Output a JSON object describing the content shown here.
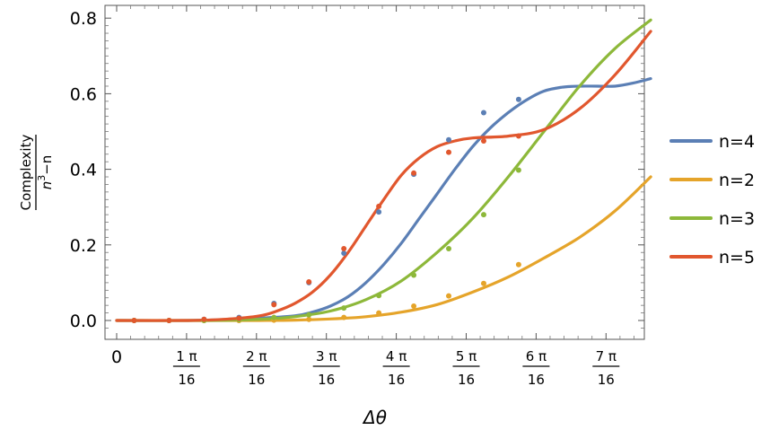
{
  "chart_data": {
    "type": "line",
    "xlabel": "Δθ",
    "ylabel_numerator": "Complexity",
    "ylabel_denominator_base": "n",
    "ylabel_denominator_exp": "3",
    "ylabel_denominator_tail": "−n",
    "xlim": [
      -0.03,
      0.468
    ],
    "ylim": [
      -0.03,
      0.82
    ],
    "x_zero_label": "0",
    "x_ticks": [
      {
        "value": 0.19635,
        "num": "1 π",
        "den": "16"
      },
      {
        "value": 0.3927,
        "num": "2 π",
        "den": "16"
      },
      {
        "value": 0.58905,
        "num": "3 π",
        "den": "16"
      },
      {
        "value": 0.7854,
        "num": "4 π",
        "den": "16"
      },
      {
        "value": 0.98175,
        "num": "5 π",
        "den": "16"
      },
      {
        "value": 1.1781,
        "num": "6 π",
        "den": "16"
      },
      {
        "value": 1.37445,
        "num": "7 π",
        "den": "16"
      }
    ],
    "y_ticks": [
      {
        "value": 0.0,
        "label": "0.0"
      },
      {
        "value": 0.2,
        "label": "0.2"
      },
      {
        "value": 0.4,
        "label": "0.4"
      },
      {
        "value": 0.6,
        "label": "0.6"
      },
      {
        "value": 0.8,
        "label": "0.8"
      }
    ],
    "legend_position": "right",
    "series": [
      {
        "name": "n=4",
        "color": "#5b7fb5",
        "points_x": [
          0.0982,
          0.2945,
          0.4909,
          0.6872,
          0.8836,
          1.0799,
          1.2763,
          1.4726,
          1.669,
          1.8653,
          2.0617,
          2.258
        ],
        "points_y": [
          0.0,
          0.0,
          0.003,
          0.008,
          0.045,
          0.1,
          0.178,
          0.287,
          0.387,
          0.478,
          0.55,
          0.585
        ],
        "curve_x": [
          0.0,
          0.4,
          0.6,
          0.8,
          1.0,
          1.1,
          1.2,
          1.3,
          1.4,
          1.5,
          1.6,
          1.7,
          1.8,
          1.9,
          2.0,
          2.1,
          2.2,
          2.3,
          2.4,
          2.5,
          2.6,
          2.7,
          2.8,
          2.9,
          3.0
        ],
        "curve_y": [
          0.0,
          0.0,
          0.002,
          0.006,
          0.012,
          0.022,
          0.038,
          0.063,
          0.1,
          0.148,
          0.205,
          0.27,
          0.335,
          0.4,
          0.46,
          0.51,
          0.55,
          0.583,
          0.607,
          0.617,
          0.62,
          0.62,
          0.62,
          0.628,
          0.64
        ]
      },
      {
        "name": "n=2",
        "color": "#e5a42a",
        "points_x": [
          0.0982,
          0.2945,
          0.4909,
          0.6872,
          0.8836,
          1.0799,
          1.2763,
          1.4726,
          1.669,
          1.8653,
          2.0617,
          2.258
        ],
        "points_y": [
          0.0,
          0.0,
          0.0,
          0.0,
          0.001,
          0.003,
          0.008,
          0.02,
          0.038,
          0.065,
          0.098,
          0.148
        ],
        "curve_x": [
          0.0,
          0.5,
          0.8,
          1.0,
          1.2,
          1.4,
          1.6,
          1.8,
          2.0,
          2.2,
          2.4,
          2.6,
          2.8,
          3.0
        ],
        "curve_y": [
          0.0,
          0.0,
          0.0,
          0.001,
          0.004,
          0.01,
          0.022,
          0.042,
          0.075,
          0.115,
          0.165,
          0.22,
          0.29,
          0.38
        ]
      },
      {
        "name": "n=3",
        "color": "#8db83a",
        "points_x": [
          0.0982,
          0.2945,
          0.4909,
          0.6872,
          0.8836,
          1.0799,
          1.2763,
          1.4726,
          1.669,
          1.8653,
          2.0617,
          2.258
        ],
        "points_y": [
          0.0,
          0.0,
          0.0,
          0.002,
          0.008,
          0.015,
          0.033,
          0.066,
          0.12,
          0.19,
          0.28,
          0.398
        ],
        "curve_x": [
          0.0,
          0.5,
          0.8,
          1.0,
          1.2,
          1.4,
          1.6,
          1.8,
          2.0,
          2.2,
          2.4,
          2.6,
          2.8,
          3.0
        ],
        "curve_y": [
          0.0,
          0.0,
          0.003,
          0.01,
          0.025,
          0.055,
          0.105,
          0.18,
          0.27,
          0.38,
          0.5,
          0.62,
          0.72,
          0.795
        ]
      },
      {
        "name": "n=5",
        "color": "#e1572e",
        "points_x": [
          0.0982,
          0.2945,
          0.4909,
          0.6872,
          0.8836,
          1.0799,
          1.2763,
          1.4726,
          1.669,
          1.8653,
          2.0617,
          2.258
        ],
        "points_y": [
          0.0,
          0.0,
          0.003,
          0.006,
          0.042,
          0.102,
          0.19,
          0.302,
          0.39,
          0.445,
          0.475,
          0.488
        ],
        "curve_x": [
          0.0,
          0.4,
          0.6,
          0.8,
          0.9,
          1.0,
          1.1,
          1.2,
          1.3,
          1.4,
          1.5,
          1.6,
          1.7,
          1.8,
          1.9,
          2.0,
          2.2,
          2.4,
          2.6,
          2.8,
          3.0
        ],
        "curve_y": [
          0.0,
          0.0,
          0.003,
          0.012,
          0.025,
          0.045,
          0.075,
          0.12,
          0.18,
          0.25,
          0.32,
          0.385,
          0.43,
          0.46,
          0.475,
          0.483,
          0.488,
          0.505,
          0.56,
          0.65,
          0.765
        ]
      }
    ]
  }
}
